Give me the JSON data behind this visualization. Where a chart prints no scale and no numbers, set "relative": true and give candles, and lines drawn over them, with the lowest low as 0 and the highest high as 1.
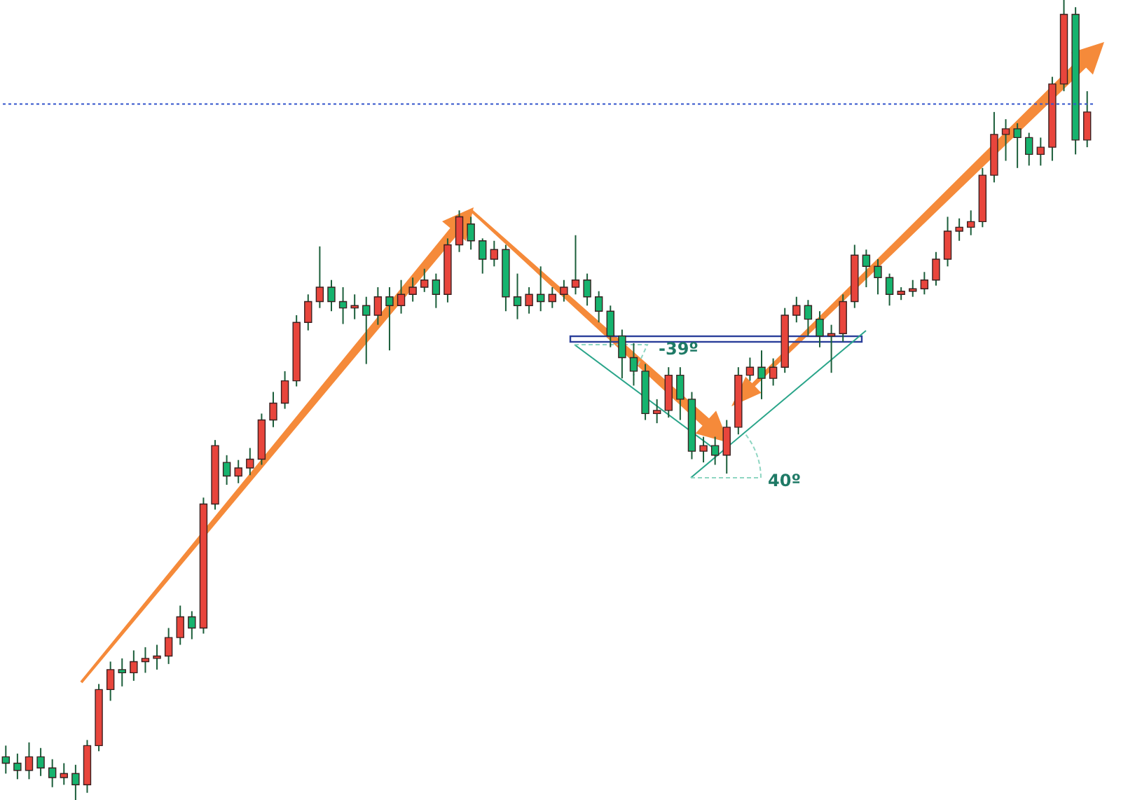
{
  "chart_data": {
    "type": "candlestick",
    "relative": true,
    "categories": [
      null,
      null,
      null,
      null,
      null,
      null,
      null,
      null,
      null,
      null,
      null,
      null,
      null,
      null,
      null,
      null,
      null,
      null,
      null,
      null,
      null,
      null,
      null,
      null,
      null,
      null,
      null,
      null,
      null,
      null,
      null,
      null,
      null,
      null,
      null,
      null,
      null,
      null,
      null,
      null,
      null,
      null,
      null,
      null,
      null,
      null,
      null,
      null,
      null,
      null,
      null,
      null,
      null,
      null,
      null,
      null,
      null,
      null,
      null,
      null,
      null,
      null,
      null,
      null,
      null,
      null,
      null,
      null,
      null,
      null,
      null,
      null,
      null,
      null,
      null,
      null,
      null,
      null,
      null,
      null,
      null,
      null,
      null,
      null,
      null,
      null,
      null,
      null,
      null,
      null,
      null,
      null,
      null,
      null
    ],
    "ohlc": [
      [
        0.054,
        0.068,
        0.033,
        0.046
      ],
      [
        0.046,
        0.058,
        0.026,
        0.037
      ],
      [
        0.037,
        0.072,
        0.026,
        0.054
      ],
      [
        0.054,
        0.065,
        0.03,
        0.04
      ],
      [
        0.04,
        0.051,
        0.016,
        0.028
      ],
      [
        0.028,
        0.046,
        0.019,
        0.033
      ],
      [
        0.033,
        0.044,
        0,
        0.019
      ],
      [
        0.019,
        0.075,
        0.009,
        0.068
      ],
      [
        0.068,
        0.145,
        0.061,
        0.138
      ],
      [
        0.138,
        0.173,
        0.124,
        0.163
      ],
      [
        0.163,
        0.177,
        0.142,
        0.159
      ],
      [
        0.159,
        0.187,
        0.149,
        0.173
      ],
      [
        0.173,
        0.191,
        0.159,
        0.177
      ],
      [
        0.177,
        0.194,
        0.163,
        0.18
      ],
      [
        0.18,
        0.215,
        0.17,
        0.203
      ],
      [
        0.203,
        0.243,
        0.194,
        0.229
      ],
      [
        0.229,
        0.236,
        0.201,
        0.215
      ],
      [
        0.215,
        0.378,
        0.208,
        0.37
      ],
      [
        0.37,
        0.45,
        0.363,
        0.443
      ],
      [
        0.422,
        0.431,
        0.394,
        0.405
      ],
      [
        0.405,
        0.425,
        0.396,
        0.415
      ],
      [
        0.415,
        0.44,
        0.406,
        0.426
      ],
      [
        0.426,
        0.483,
        0.419,
        0.475
      ],
      [
        0.475,
        0.51,
        0.466,
        0.496
      ],
      [
        0.496,
        0.536,
        0.489,
        0.524
      ],
      [
        0.524,
        0.606,
        0.517,
        0.597
      ],
      [
        0.597,
        0.632,
        0.587,
        0.623
      ],
      [
        0.623,
        0.692,
        0.615,
        0.641
      ],
      [
        0.641,
        0.65,
        0.611,
        0.623
      ],
      [
        0.623,
        0.641,
        0.595,
        0.615
      ],
      [
        0.615,
        0.632,
        0.601,
        0.618
      ],
      [
        0.618,
        0.629,
        0.545,
        0.606
      ],
      [
        0.606,
        0.641,
        0.594,
        0.629
      ],
      [
        0.629,
        0.641,
        0.562,
        0.618
      ],
      [
        0.618,
        0.65,
        0.608,
        0.632
      ],
      [
        0.632,
        0.653,
        0.623,
        0.641
      ],
      [
        0.641,
        0.664,
        0.635,
        0.65
      ],
      [
        0.65,
        0.658,
        0.615,
        0.632
      ],
      [
        0.632,
        0.702,
        0.622,
        0.694
      ],
      [
        0.694,
        0.737,
        0.685,
        0.729
      ],
      [
        0.72,
        0.729,
        0.688,
        0.699
      ],
      [
        0.699,
        0.702,
        0.658,
        0.676
      ],
      [
        0.676,
        0.699,
        0.667,
        0.688
      ],
      [
        0.688,
        0.694,
        0.611,
        0.629
      ],
      [
        0.629,
        0.658,
        0.601,
        0.618
      ],
      [
        0.618,
        0.641,
        0.608,
        0.632
      ],
      [
        0.632,
        0.667,
        0.611,
        0.623
      ],
      [
        0.623,
        0.641,
        0.615,
        0.632
      ],
      [
        0.632,
        0.65,
        0.623,
        0.641
      ],
      [
        0.641,
        0.706,
        0.632,
        0.65
      ],
      [
        0.65,
        0.658,
        0.618,
        0.629
      ],
      [
        0.629,
        0.636,
        0.597,
        0.611
      ],
      [
        0.611,
        0.618,
        0.566,
        0.58
      ],
      [
        0.58,
        0.588,
        0.527,
        0.553
      ],
      [
        0.553,
        0.571,
        0.518,
        0.536
      ],
      [
        0.536,
        0.545,
        0.475,
        0.483
      ],
      [
        0.483,
        0.501,
        0.471,
        0.487
      ],
      [
        0.487,
        0.541,
        0.478,
        0.531
      ],
      [
        0.531,
        0.541,
        0.475,
        0.501
      ],
      [
        0.501,
        0.51,
        0.426,
        0.436
      ],
      [
        0.436,
        0.454,
        0.422,
        0.443
      ],
      [
        0.443,
        0.454,
        0.419,
        0.431
      ],
      [
        0.431,
        0.475,
        0.408,
        0.466
      ],
      [
        0.466,
        0.541,
        0.457,
        0.531
      ],
      [
        0.531,
        0.553,
        0.524,
        0.541
      ],
      [
        0.541,
        0.562,
        0.501,
        0.527
      ],
      [
        0.527,
        0.552,
        0.518,
        0.541
      ],
      [
        0.541,
        0.615,
        0.534,
        0.606
      ],
      [
        0.606,
        0.629,
        0.597,
        0.618
      ],
      [
        0.618,
        0.625,
        0.58,
        0.601
      ],
      [
        0.601,
        0.611,
        0.566,
        0.58
      ],
      [
        0.58,
        0.594,
        0.534,
        0.583
      ],
      [
        0.583,
        0.632,
        0.573,
        0.623
      ],
      [
        0.623,
        0.694,
        0.615,
        0.681
      ],
      [
        0.681,
        0.688,
        0.641,
        0.667
      ],
      [
        0.667,
        0.676,
        0.632,
        0.653
      ],
      [
        0.653,
        0.658,
        0.618,
        0.632
      ],
      [
        0.632,
        0.641,
        0.625,
        0.636
      ],
      [
        0.636,
        0.65,
        0.629,
        0.639
      ],
      [
        0.639,
        0.66,
        0.632,
        0.65
      ],
      [
        0.65,
        0.685,
        0.643,
        0.676
      ],
      [
        0.676,
        0.729,
        0.667,
        0.711
      ],
      [
        0.711,
        0.727,
        0.699,
        0.716
      ],
      [
        0.716,
        0.737,
        0.706,
        0.723
      ],
      [
        0.723,
        0.79,
        0.716,
        0.781
      ],
      [
        0.781,
        0.86,
        0.772,
        0.832
      ],
      [
        0.832,
        0.851,
        0.799,
        0.839
      ],
      [
        0.839,
        0.846,
        0.79,
        0.828
      ],
      [
        0.828,
        0.834,
        0.793,
        0.807
      ],
      [
        0.807,
        0.828,
        0.793,
        0.816
      ],
      [
        0.816,
        0.904,
        0.799,
        0.895
      ],
      [
        0.895,
        1,
        0.886,
        0.982
      ],
      [
        0.982,
        0.991,
        0.807,
        0.825
      ],
      [
        0.825,
        0.886,
        0.816,
        0.86
      ]
    ],
    "colors": [
      "#16b36e",
      "#16b36e",
      "#e8453c",
      "#16b36e",
      "#16b36e",
      "#e8453c",
      "#16b36e",
      "#e8453c",
      "#e8453c",
      "#e8453c",
      "#16b36e",
      "#e8453c",
      "#e8453c",
      "#e8453c",
      "#e8453c",
      "#e8453c",
      "#16b36e",
      "#e8453c",
      "#e8453c",
      "#16b36e",
      "#e8453c",
      "#e8453c",
      "#e8453c",
      "#e8453c",
      "#e8453c",
      "#e8453c",
      "#e8453c",
      "#e8453c",
      "#16b36e",
      "#16b36e",
      "#e8453c",
      "#16b36e",
      "#e8453c",
      "#16b36e",
      "#e8453c",
      "#e8453c",
      "#e8453c",
      "#16b36e",
      "#e8453c",
      "#e8453c",
      "#16b36e",
      "#16b36e",
      "#e8453c",
      "#16b36e",
      "#16b36e",
      "#e8453c",
      "#16b36e",
      "#e8453c",
      "#e8453c",
      "#e8453c",
      "#16b36e",
      "#16b36e",
      "#16b36e",
      "#16b36e",
      "#16b36e",
      "#16b36e",
      "#e8453c",
      "#e8453c",
      "#16b36e",
      "#16b36e",
      "#e8453c",
      "#16b36e",
      "#e8453c",
      "#e8453c",
      "#e8453c",
      "#16b36e",
      "#e8453c",
      "#e8453c",
      "#e8453c",
      "#16b36e",
      "#16b36e",
      "#e8453c",
      "#e8453c",
      "#e8453c",
      "#16b36e",
      "#16b36e",
      "#16b36e",
      "#e8453c",
      "#e8453c",
      "#e8453c",
      "#e8453c",
      "#e8453c",
      "#e8453c",
      "#e8453c",
      "#e8453c",
      "#e8453c",
      "#e8453c",
      "#16b36e",
      "#16b36e",
      "#e8453c",
      "#e8453c",
      "#e8453c",
      "#16b36e",
      "#e8453c"
    ],
    "ref_lines": [
      {
        "axis": "y",
        "value": 0.87,
        "color": "#3355cc",
        "line_style": "dotted"
      }
    ],
    "annotations": [
      "-39º",
      "40º"
    ]
  }
}
